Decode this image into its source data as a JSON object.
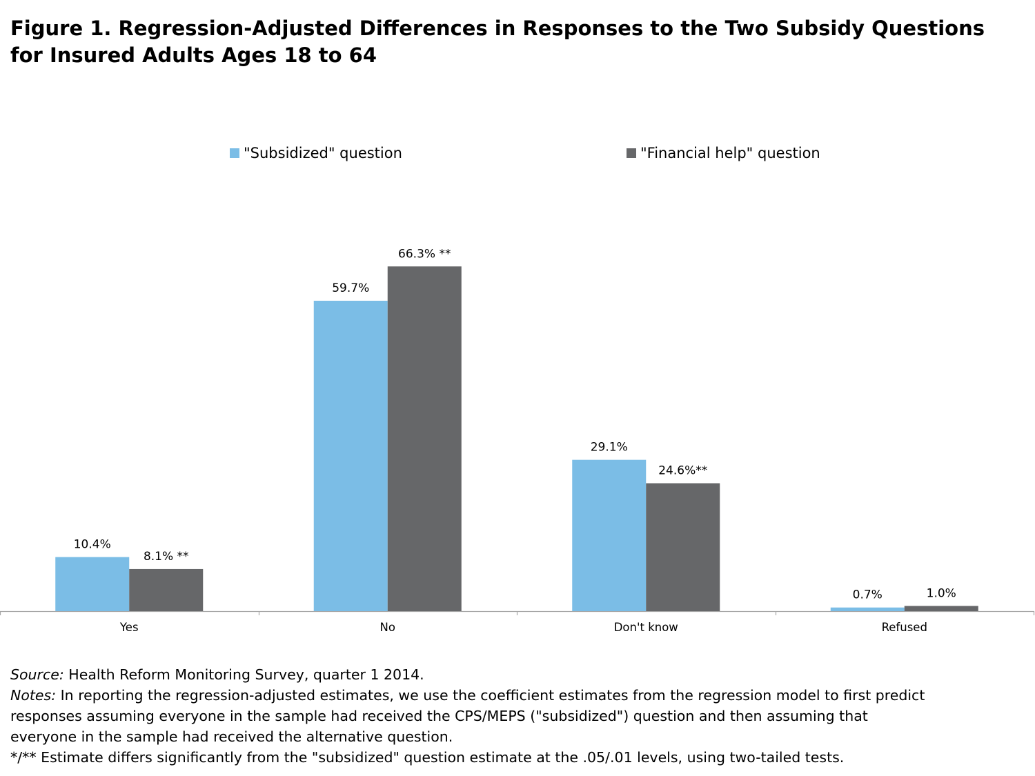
{
  "title": {
    "line1": "Figure 1. Regression-Adjusted Differences in Responses to the Two Subsidy Questions",
    "line2": "for Insured Adults Ages 18 to 64"
  },
  "legend": {
    "subsidized": "\"Subsidized\" question",
    "financial": "\"Financial help\" question"
  },
  "colors": {
    "subsidized": "#7bbde6",
    "financial": "#666769",
    "axis": "#a6a6a6"
  },
  "chart_data": {
    "type": "bar",
    "categories": [
      "Yes",
      "No",
      "Don't know",
      "Refused"
    ],
    "series": [
      {
        "name": "\"Subsidized\" question",
        "values": [
          10.4,
          59.7,
          29.1,
          0.7
        ],
        "labels": [
          "10.4%",
          "59.7%",
          "29.1%",
          "0.7%"
        ]
      },
      {
        "name": "\"Financial help\" question",
        "values": [
          8.1,
          66.3,
          24.6,
          1.0
        ],
        "labels": [
          "8.1% **",
          "66.3% **",
          "24.6%**",
          "1.0%"
        ]
      }
    ],
    "ylim": [
      0,
      75
    ],
    "grid": false,
    "legend_position": "top"
  },
  "notes": {
    "source_label": "Source:",
    "source_text": " Health Reform Monitoring Survey, quarter 1 2014.",
    "notes_label": "Notes:",
    "notes_line1": " In reporting the regression-adjusted estimates, we use the coefficient estimates from the regression model to first predict",
    "notes_line2": "responses assuming everyone in the sample had received the CPS/MEPS (\"subsidized\") question and then assuming that",
    "notes_line3": "everyone in the sample had received the alternative question.",
    "significance": "*/** Estimate differs significantly from the \"subsidized\" question estimate at the .05/.01 levels, using two-tailed tests."
  }
}
